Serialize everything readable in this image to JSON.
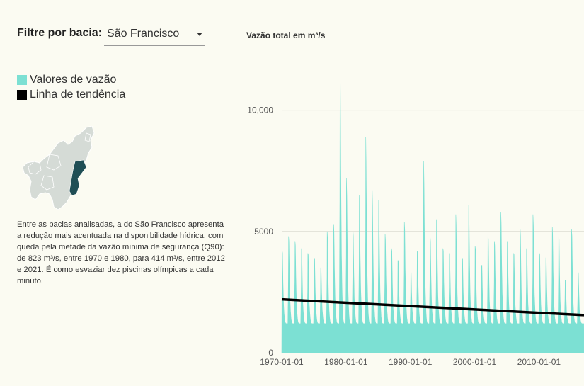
{
  "filter": {
    "label": "Filtre por bacia:",
    "selected": "São Francisco"
  },
  "legend": {
    "items": [
      {
        "label": "Valores de vazão",
        "color": "#7ce0d3"
      },
      {
        "label": "Linha de tendência",
        "color": "#000000"
      }
    ]
  },
  "description": "Entre as bacias analisadas, a do São Francisco apresenta a redução mais acentuada na disponibilidade hídrica, com queda pela metade da vazão mínima de segurança (Q90): de 823 m³/s, entre 1970 e 1980, para 414 m³/s, entre 2012 e 2021. É como esvaziar dez piscinas olímpicas a cada minuto.",
  "colors": {
    "background": "#fbfbf2",
    "flow": "#7ce0d3",
    "trend": "#000000",
    "basin_highlight": "#1f4e55",
    "basin_rest": "#d5dbd6"
  },
  "chart_data": {
    "type": "area",
    "title": "Vazão total em m³/s",
    "x_range": [
      "1970-01-01",
      "2016-12-31"
    ],
    "x_ticks": [
      "1970-01-01",
      "1980-01-01",
      "1990-01-01",
      "2000-01-01",
      "2010-01-01"
    ],
    "ylim": [
      0,
      12500
    ],
    "y_ticks": [
      {
        "value": 0,
        "label": "0"
      },
      {
        "value": 5000,
        "label": "5000"
      },
      {
        "value": 10000,
        "label": "10,000"
      }
    ],
    "grid": "horizontal",
    "series": [
      {
        "name": "Valores de vazão",
        "kind": "area",
        "yearly_peaks": [
          {
            "year": 1970,
            "peak": 4200
          },
          {
            "year": 1971,
            "peak": 4800
          },
          {
            "year": 1972,
            "peak": 4600
          },
          {
            "year": 1973,
            "peak": 4300
          },
          {
            "year": 1974,
            "peak": 4100
          },
          {
            "year": 1975,
            "peak": 3900
          },
          {
            "year": 1976,
            "peak": 3500
          },
          {
            "year": 1977,
            "peak": 5000
          },
          {
            "year": 1978,
            "peak": 5300
          },
          {
            "year": 1979,
            "peak": 12300
          },
          {
            "year": 1980,
            "peak": 7200
          },
          {
            "year": 1981,
            "peak": 5100
          },
          {
            "year": 1982,
            "peak": 6500
          },
          {
            "year": 1983,
            "peak": 8900
          },
          {
            "year": 1984,
            "peak": 6700
          },
          {
            "year": 1985,
            "peak": 6300
          },
          {
            "year": 1986,
            "peak": 4900
          },
          {
            "year": 1987,
            "peak": 4300
          },
          {
            "year": 1988,
            "peak": 3800
          },
          {
            "year": 1989,
            "peak": 5400
          },
          {
            "year": 1990,
            "peak": 3300
          },
          {
            "year": 1991,
            "peak": 4200
          },
          {
            "year": 1992,
            "peak": 7900
          },
          {
            "year": 1993,
            "peak": 4800
          },
          {
            "year": 1994,
            "peak": 5500
          },
          {
            "year": 1995,
            "peak": 4300
          },
          {
            "year": 1996,
            "peak": 4100
          },
          {
            "year": 1997,
            "peak": 5700
          },
          {
            "year": 1998,
            "peak": 3900
          },
          {
            "year": 1999,
            "peak": 6100
          },
          {
            "year": 2000,
            "peak": 4400
          },
          {
            "year": 2001,
            "peak": 3600
          },
          {
            "year": 2002,
            "peak": 4900
          },
          {
            "year": 2003,
            "peak": 4600
          },
          {
            "year": 2004,
            "peak": 5800
          },
          {
            "year": 2005,
            "peak": 4600
          },
          {
            "year": 2006,
            "peak": 4100
          },
          {
            "year": 2007,
            "peak": 5100
          },
          {
            "year": 2008,
            "peak": 4300
          },
          {
            "year": 2009,
            "peak": 5700
          },
          {
            "year": 2010,
            "peak": 4100
          },
          {
            "year": 2011,
            "peak": 3900
          },
          {
            "year": 2012,
            "peak": 5200
          },
          {
            "year": 2013,
            "peak": 4900
          },
          {
            "year": 2014,
            "peak": 3000
          },
          {
            "year": 2015,
            "peak": 5100
          },
          {
            "year": 2016,
            "peak": 3300
          }
        ],
        "dry_season_min_approx": 1200
      },
      {
        "name": "Linha de tendência",
        "kind": "line",
        "points": [
          {
            "x": "1970-01-01",
            "y": 2200
          },
          {
            "x": "2016-12-31",
            "y": 1550
          }
        ]
      }
    ]
  }
}
